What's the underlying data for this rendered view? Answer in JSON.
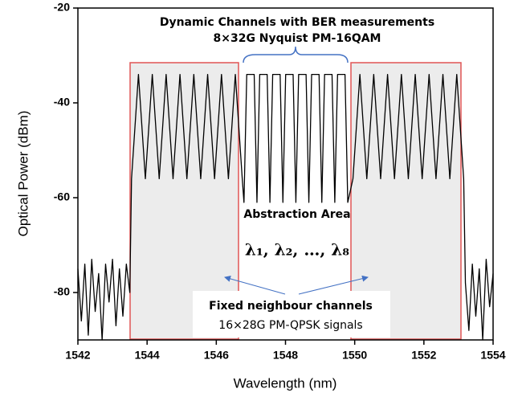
{
  "chart_data": {
    "type": "line",
    "x_label": "Wavelength (nm)",
    "y_label": "Optical Power (dBm)",
    "xlim": [
      1542,
      1554
    ],
    "xticks": [
      1542,
      1544,
      1546,
      1548,
      1550,
      1552,
      1554
    ],
    "ylim": [
      -90,
      -20
    ],
    "yticks": [
      -20,
      -40,
      -60,
      -80
    ],
    "x": [
      1542,
      1542.1,
      1542.2,
      1542.3,
      1542.4,
      1542.5,
      1542.6,
      1542.7,
      1542.8,
      1542.9,
      1543.0,
      1543.1,
      1543.2,
      1543.3,
      1543.4,
      1543.5,
      1543.55,
      1543.75,
      1543.95,
      1544.15,
      1544.35,
      1544.55,
      1544.75,
      1544.95,
      1545.15,
      1545.35,
      1545.55,
      1545.75,
      1545.95,
      1546.15,
      1546.35,
      1546.55,
      1546.75,
      1546.8,
      1546.88,
      1547.095,
      1547.175,
      1547.255,
      1547.47,
      1547.55,
      1547.63,
      1547.845,
      1547.925,
      1548.005,
      1548.22,
      1548.3,
      1548.38,
      1548.595,
      1548.675,
      1548.755,
      1548.97,
      1549.05,
      1549.13,
      1549.345,
      1549.425,
      1549.505,
      1549.72,
      1549.8,
      1549.95,
      1550.15,
      1550.35,
      1550.55,
      1550.75,
      1550.95,
      1551.15,
      1551.35,
      1551.55,
      1551.75,
      1551.95,
      1552.15,
      1552.35,
      1552.55,
      1552.75,
      1552.95,
      1553.15,
      1553.2,
      1553.3,
      1553.4,
      1553.5,
      1553.6,
      1553.7,
      1553.8,
      1553.9,
      1554
    ],
    "series": [
      {
        "color": "#000000",
        "values": [
          -75,
          -86,
          -74,
          -89,
          -73,
          -84,
          -76,
          -90,
          -74,
          -82,
          -73,
          -87,
          -75,
          -85,
          -74,
          -80,
          -56,
          -34,
          -56,
          -34,
          -56,
          -34,
          -56,
          -34,
          -56,
          -34,
          -56,
          -34,
          -56,
          -34,
          -56,
          -34,
          -56,
          -61,
          -34,
          -34,
          -61,
          -34,
          -34,
          -61,
          -34,
          -34,
          -61,
          -34,
          -34,
          -61,
          -34,
          -34,
          -61,
          -34,
          -34,
          -61,
          -34,
          -34,
          -61,
          -34,
          -34,
          -61,
          -56,
          -34,
          -56,
          -34,
          -56,
          -34,
          -56,
          -34,
          -56,
          -34,
          -56,
          -34,
          -56,
          -34,
          -56,
          -34,
          -56,
          -78,
          -88,
          -74,
          -85,
          -75,
          -90,
          -73,
          -83,
          -76
        ]
      }
    ],
    "annotations": [
      "Dynamic Channels with BER measurements",
      "8×32G Nyquist PM-16QAM",
      "Abstraction Area",
      "λ₁, λ₂, …, λ₈",
      "Fixed neighbour channels",
      "16×28G PM-QPSK signals"
    ]
  }
}
